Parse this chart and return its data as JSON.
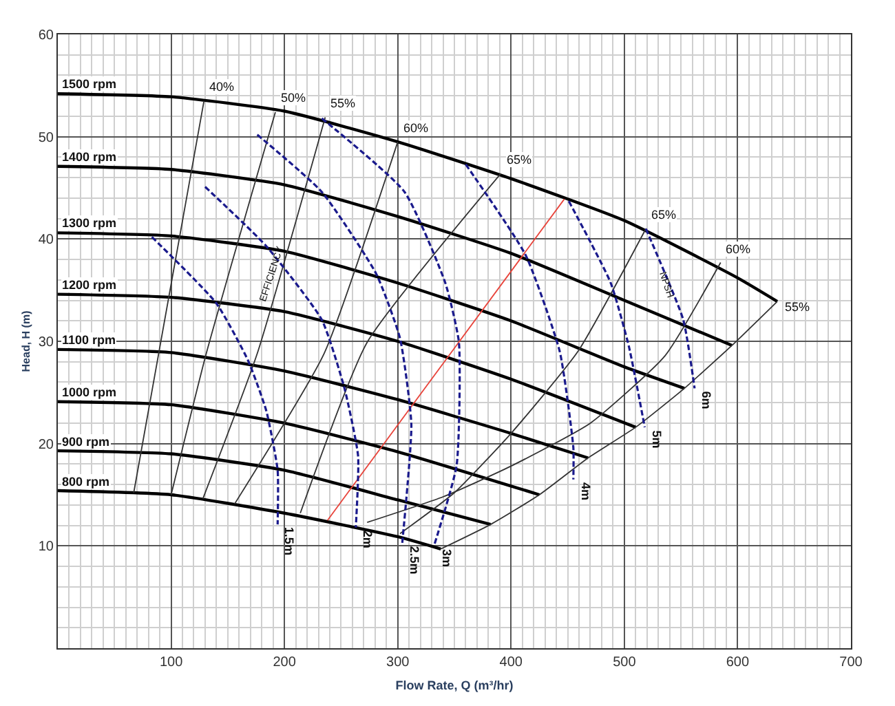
{
  "chart_data": {
    "type": "line",
    "xlabel": "Flow Rate, Q (m³/hr)",
    "ylabel": "Head, H (m)",
    "xlim": [
      0,
      700
    ],
    "xticks": [
      100,
      200,
      300,
      400,
      500,
      600,
      700
    ],
    "ylim": [
      0,
      60
    ],
    "yticks": [
      10,
      20,
      30,
      40,
      50,
      60
    ],
    "grid": true,
    "marker": "none",
    "series": [
      {
        "color": "#000000",
        "line_style": "solid",
        "x": [
          0,
          100,
          200,
          300,
          400,
          500,
          600,
          635
        ],
        "values": [
          54.2,
          53.9,
          52.5,
          49.5,
          45.9,
          41.8,
          36.2,
          33.9
        ]
      },
      {
        "color": "#000000",
        "line_style": "solid",
        "x": [
          0,
          100,
          200,
          300,
          400,
          500,
          595
        ],
        "values": [
          47.1,
          46.8,
          45.3,
          42.2,
          38.6,
          34.0,
          29.6
        ]
      },
      {
        "color": "#000000",
        "line_style": "solid",
        "x": [
          0,
          100,
          200,
          300,
          400,
          500,
          553
        ],
        "values": [
          40.6,
          40.3,
          38.8,
          35.7,
          32.0,
          27.5,
          25.4
        ]
      },
      {
        "color": "#000000",
        "line_style": "solid",
        "x": [
          0,
          100,
          200,
          300,
          400,
          510
        ],
        "values": [
          34.6,
          34.3,
          32.9,
          30.0,
          26.3,
          21.6
        ]
      },
      {
        "color": "#000000",
        "line_style": "solid",
        "x": [
          0,
          100,
          200,
          300,
          400,
          468
        ],
        "values": [
          29.2,
          28.9,
          27.1,
          24.3,
          21.0,
          18.6
        ]
      },
      {
        "color": "#000000",
        "line_style": "solid",
        "x": [
          0,
          100,
          200,
          300,
          425
        ],
        "values": [
          24.1,
          23.8,
          22.0,
          19.2,
          15.0
        ]
      },
      {
        "color": "#000000",
        "line_style": "solid",
        "x": [
          0,
          100,
          200,
          300,
          382
        ],
        "values": [
          19.3,
          19.0,
          17.4,
          14.5,
          12.1
        ]
      },
      {
        "color": "#000000",
        "line_style": "solid",
        "x": [
          0,
          100,
          200,
          300,
          338
        ],
        "values": [
          15.4,
          15.0,
          13.2,
          10.9,
          9.7
        ]
      },
      {
        "color": "#333333",
        "line_style": "solid",
        "x": [
          129,
          89,
          67
        ],
        "values": [
          53.5,
          28.8,
          15.2
        ]
      },
      {
        "color": "#333333",
        "line_style": "solid",
        "x": [
          192,
          131,
          100
        ],
        "values": [
          52.4,
          28.8,
          15.0
        ]
      },
      {
        "color": "#333333",
        "line_style": "solid",
        "x": [
          236,
          176,
          128
        ],
        "values": [
          51.9,
          28.8,
          14.6
        ]
      },
      {
        "color": "#333333",
        "line_style": "solid",
        "x": [
          300,
          235,
          156
        ],
        "values": [
          49.5,
          28.8,
          14.1
        ]
      },
      {
        "color": "#333333",
        "line_style": "solid",
        "x": [
          391,
          273,
          214
        ],
        "values": [
          46.4,
          29.9,
          13.2
        ]
      },
      {
        "color": "#333333",
        "line_style": "solid",
        "x": [
          302,
          350,
          400,
          459,
          519
        ],
        "values": [
          11.2,
          15.2,
          21.0,
          29.0,
          41.0
        ]
      },
      {
        "color": "#333333",
        "line_style": "solid",
        "x": [
          273,
          340,
          400,
          470,
          536,
          585
        ],
        "values": [
          12.3,
          14.8,
          17.8,
          22.0,
          28.6,
          37.7
        ]
      },
      {
        "color": "#333333",
        "line_style": "solid",
        "x": [
          338,
          382,
          425,
          468,
          510,
          553,
          595,
          635
        ],
        "values": [
          9.7,
          12.1,
          15.0,
          18.6,
          21.6,
          25.4,
          29.6,
          33.9
        ]
      },
      {
        "color": "#e8433a",
        "line_style": "solid",
        "x": [
          238,
          447
        ],
        "values": [
          12.5,
          43.9
        ]
      },
      {
        "color": "#1a1a8c",
        "line_style": "dashed",
        "x": [
          83,
          140,
          168,
          184,
          194,
          194
        ],
        "values": [
          40.2,
          33.7,
          28.1,
          23.2,
          17.4,
          12.1
        ]
      },
      {
        "color": "#1a1a8c",
        "line_style": "dashed",
        "x": [
          130,
          184,
          233,
          253,
          265,
          263
        ],
        "values": [
          45.1,
          39.3,
          32.1,
          25.4,
          18.8,
          11.8
        ]
      },
      {
        "color": "#1a1a8c",
        "line_style": "dashed",
        "x": [
          176,
          233,
          281,
          302,
          312,
          304
        ],
        "values": [
          50.2,
          44.6,
          36.6,
          30.3,
          21.9,
          10.3
        ]
      },
      {
        "color": "#1a1a8c",
        "line_style": "dashed",
        "x": [
          233,
          306,
          342,
          354,
          352,
          332
        ],
        "values": [
          51.8,
          44.6,
          35.7,
          29.9,
          17.9,
          10.0
        ]
      },
      {
        "color": "#1a1a8c",
        "line_style": "dashed",
        "x": [
          360,
          413,
          443,
          455,
          455
        ],
        "values": [
          47.3,
          38.4,
          29.0,
          19.6,
          16.5
        ]
      },
      {
        "color": "#1a1a8c",
        "line_style": "dashed",
        "x": [
          451,
          488,
          504,
          518
        ],
        "values": [
          43.7,
          35.7,
          29.5,
          21.6
        ]
      },
      {
        "color": "#1a1a8c",
        "line_style": "dashed",
        "x": [
          519,
          552,
          562
        ],
        "values": [
          41.0,
          32.1,
          25.4
        ]
      }
    ],
    "annotations": [
      {
        "text": "1500 rpm",
        "x": 0,
        "y": 54.2
      },
      {
        "text": "1400 rpm",
        "x": 0,
        "y": 47.1
      },
      {
        "text": "1300 rpm",
        "x": 0,
        "y": 40.6
      },
      {
        "text": "1200 rpm",
        "x": 0,
        "y": 34.6
      },
      {
        "text": "1100 rpm",
        "x": 0,
        "y": 29.2
      },
      {
        "text": "1000 rpm",
        "x": 0,
        "y": 24.1
      },
      {
        "text": "900 rpm",
        "x": 0,
        "y": 19.3
      },
      {
        "text": "800 rpm",
        "x": 0,
        "y": 15.4
      },
      {
        "text": "40%",
        "x": 129,
        "y": 53.5
      },
      {
        "text": "50%",
        "x": 192,
        "y": 52.4
      },
      {
        "text": "55%",
        "x": 236,
        "y": 51.9
      },
      {
        "text": "60%",
        "x": 300,
        "y": 49.5
      },
      {
        "text": "65%",
        "x": 391,
        "y": 46.4
      },
      {
        "text": "65%",
        "x": 519,
        "y": 41.0
      },
      {
        "text": "60%",
        "x": 585,
        "y": 37.7
      },
      {
        "text": "55%",
        "x": 635,
        "y": 33.9
      },
      "EFFICIENCY",
      {
        "text": "NPSH",
        "x": 537,
        "y": 35.5
      },
      {
        "text": "1.5m",
        "x": 194,
        "y": 12.1
      },
      {
        "text": "2m",
        "x": 263,
        "y": 11.8
      },
      {
        "text": "2.5m",
        "x": 304,
        "y": 10.3
      },
      {
        "text": "3m",
        "x": 332,
        "y": 10.0
      },
      {
        "text": "4m",
        "x": 455,
        "y": 16.5
      },
      {
        "text": "5m",
        "x": 518,
        "y": 21.6
      },
      {
        "text": "6m",
        "x": 562,
        "y": 25.4
      }
    ]
  }
}
